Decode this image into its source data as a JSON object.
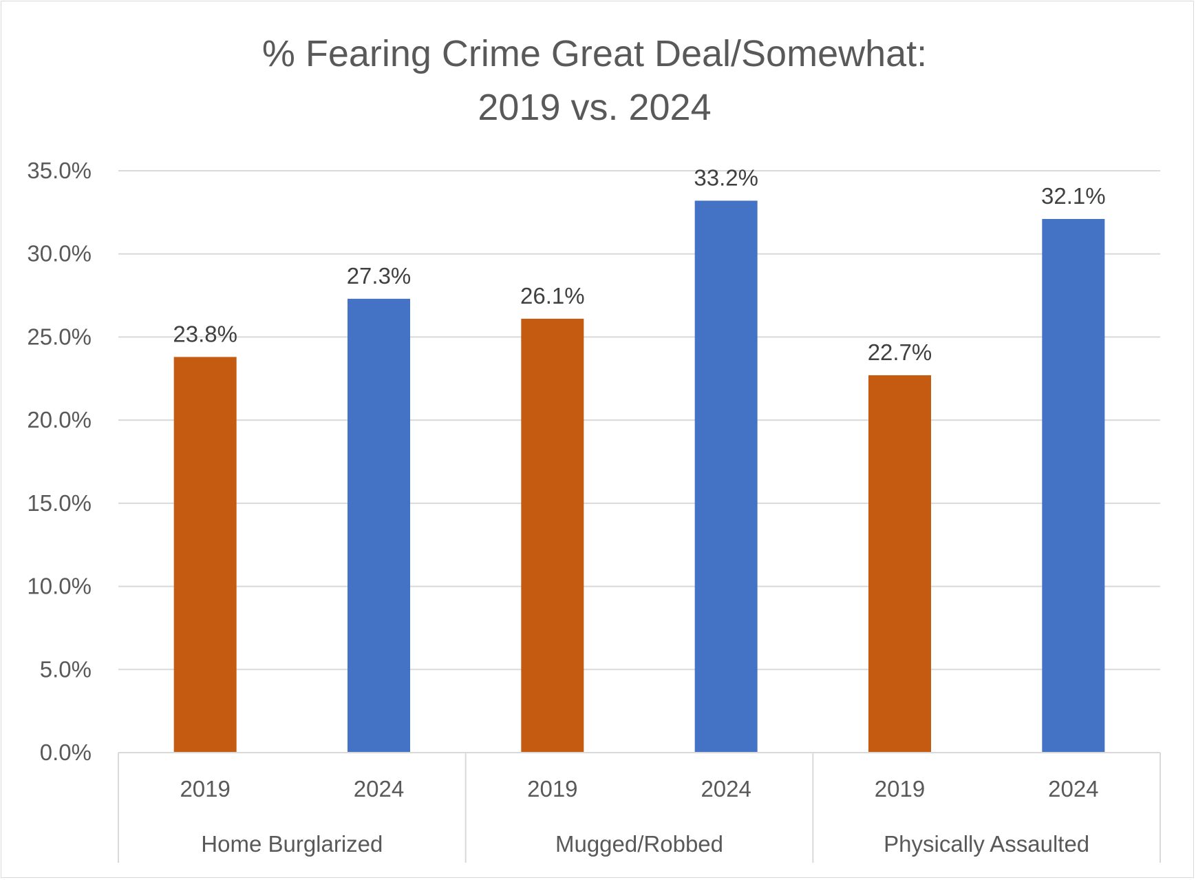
{
  "chart_data": {
    "type": "bar",
    "title": [
      "% Fearing Crime Great Deal/Somewhat:",
      "2019 vs. 2024"
    ],
    "groups": [
      "Home Burglarized",
      "Mugged/Robbed",
      "Physically Assaulted"
    ],
    "categories": [
      "2019",
      "2024",
      "2019",
      "2024",
      "2019",
      "2024"
    ],
    "values": [
      23.8,
      27.3,
      26.1,
      33.2,
      22.7,
      32.1
    ],
    "data_labels": [
      "23.8%",
      "27.3%",
      "26.1%",
      "33.2%",
      "22.7%",
      "32.1%"
    ],
    "colors": [
      "#C55A11",
      "#4472C4",
      "#C55A11",
      "#4472C4",
      "#C55A11",
      "#4472C4"
    ],
    "ylim": [
      0,
      35
    ],
    "yticks": [
      "0.0%",
      "5.0%",
      "10.0%",
      "15.0%",
      "20.0%",
      "25.0%",
      "30.0%",
      "35.0%"
    ],
    "grid": true,
    "legend": "none",
    "xlabel": "",
    "ylabel": ""
  }
}
